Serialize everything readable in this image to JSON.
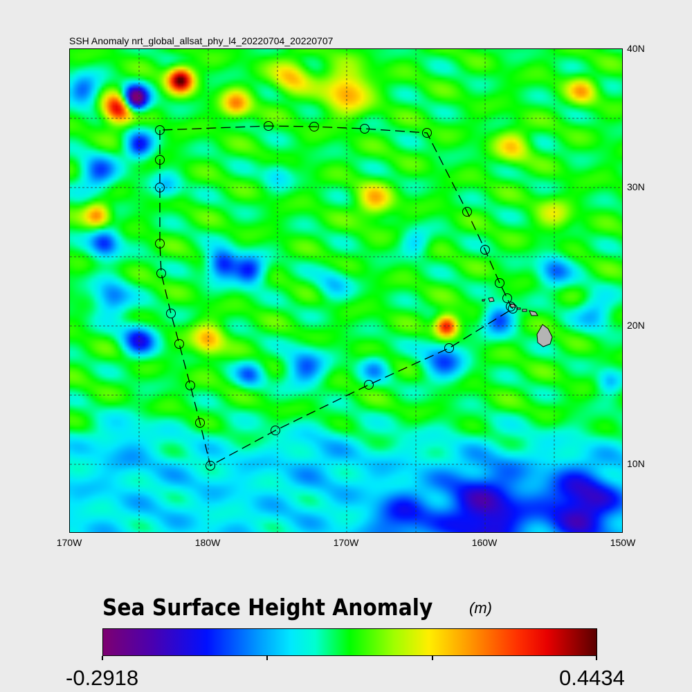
{
  "title": "SSH Anomaly nrt_global_allsat_phy_l4_20220704_20220707",
  "map": {
    "lon_range": [
      -190,
      -150
    ],
    "lat_range": [
      5,
      40
    ],
    "grid_spacing_deg": 5,
    "x_tick_labels": [
      "170W",
      "180W",
      "170W",
      "160W",
      "150W"
    ],
    "x_tick_lons": [
      -190,
      -180,
      -170,
      -160,
      -150
    ],
    "y_tick_labels": [
      "40N",
      "30N",
      "20N",
      "10N"
    ],
    "y_tick_lats": [
      40,
      30,
      20,
      10
    ],
    "land_color": "#b4b4b4",
    "field": {
      "base_north": 0.07,
      "base_south": -0.01,
      "anomalies": [
        [
          -185.3,
          36.4,
          -0.42,
          0.9
        ],
        [
          -186.5,
          35.7,
          0.32,
          1.1
        ],
        [
          -182,
          37.8,
          0.36,
          0.9
        ],
        [
          -189,
          37,
          -0.16,
          1.2
        ],
        [
          -185,
          33,
          -0.2,
          1.0
        ],
        [
          -188,
          31,
          -0.17,
          1.3
        ],
        [
          -187.5,
          26,
          -0.2,
          1.1
        ],
        [
          -187,
          22,
          -0.16,
          1.3
        ],
        [
          -185,
          19,
          -0.2,
          1.2
        ],
        [
          -179,
          24.5,
          -0.22,
          1.1
        ],
        [
          -177,
          24,
          -0.2,
          1.1
        ],
        [
          -188,
          28,
          0.2,
          0.9
        ],
        [
          -162.8,
          20,
          0.32,
          0.8
        ],
        [
          -173,
          17,
          -0.16,
          1.4
        ],
        [
          -163,
          17.5,
          -0.16,
          1.5
        ],
        [
          -159,
          20.5,
          -0.18,
          1.1
        ],
        [
          -155,
          24,
          -0.15,
          1.2
        ],
        [
          -151,
          16,
          -0.12,
          0.9
        ],
        [
          -177,
          16.5,
          -0.13,
          1.0
        ],
        [
          -168,
          17,
          -0.11,
          1.0
        ],
        [
          -152,
          21,
          -0.12,
          1.3
        ],
        [
          -170,
          37,
          0.18,
          1.6
        ],
        [
          -168,
          29,
          0.15,
          1.2
        ],
        [
          -180,
          19,
          0.17,
          1.1
        ],
        [
          -174,
          38,
          0.14,
          1.3
        ],
        [
          -153,
          37,
          0.14,
          1.0
        ],
        [
          -160,
          6.5,
          -0.19,
          3.0
        ],
        [
          -153,
          7,
          -0.2,
          2.5
        ],
        [
          -166,
          6,
          -0.12,
          2.0
        ],
        [
          -178,
          36,
          0.18,
          1.0
        ],
        [
          -165,
          26,
          -0.09,
          1.0
        ],
        [
          -171,
          23,
          -0.09,
          1.2
        ],
        [
          -158,
          33,
          0.12,
          1.2
        ],
        [
          -183,
          30,
          -0.1,
          1.0
        ],
        [
          -175,
          31,
          -0.08,
          1.0
        ],
        [
          -155,
          28,
          0.09,
          1.2
        ],
        [
          -186,
          12,
          -0.06,
          2.0
        ],
        [
          -172,
          11,
          -0.04,
          2.0
        ]
      ]
    },
    "track": [
      [
        -183.5,
        34.15
      ],
      [
        -183.5,
        32.0
      ],
      [
        -183.5,
        30.0
      ],
      [
        -183.5,
        25.95
      ],
      [
        -183.4,
        23.8
      ],
      [
        -182.7,
        20.9
      ],
      [
        -182.1,
        18.7
      ],
      [
        -181.3,
        15.7
      ],
      [
        -180.6,
        13.0
      ],
      [
        -179.85,
        9.9
      ],
      [
        -175.15,
        12.45
      ],
      [
        -168.4,
        15.75
      ],
      [
        -162.6,
        18.4
      ],
      [
        -158.0,
        21.25
      ],
      [
        -158.15,
        21.4
      ],
      [
        -158.4,
        22.0
      ],
      [
        -158.95,
        23.1
      ],
      [
        -160.0,
        25.5
      ],
      [
        -161.3,
        28.25
      ],
      [
        -164.2,
        33.95
      ],
      [
        -168.7,
        34.25
      ],
      [
        -172.35,
        34.4
      ],
      [
        -175.65,
        34.45
      ],
      [
        -183.5,
        34.15
      ]
    ]
  },
  "colorbar": {
    "title": "Sea Surface Height Anomaly",
    "unit": "(m)",
    "min_label": "-0.2918",
    "max_label": "0.4434",
    "min": -0.2918,
    "max": 0.4434
  }
}
